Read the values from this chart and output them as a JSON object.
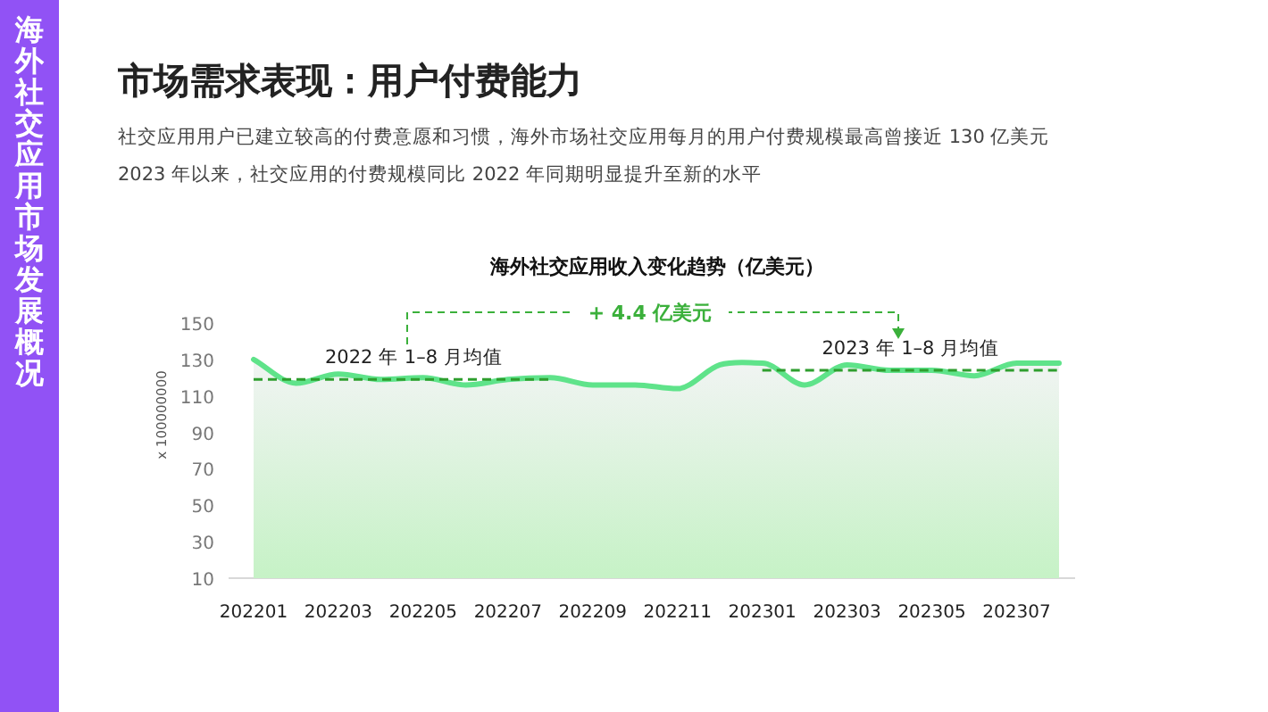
{
  "chart_data": {
    "type": "area",
    "title": "海外社交应用收入变化趋势（亿美元）",
    "ylabel": "x 100000000",
    "annotations": [
      "海外社交应用市场发展概况",
      "市场需求表现：用户付费能力",
      "社交应用用户已建立较高的付费意愿和习惯，海外市场社交应用每月的用户付费规模最高曾接近 130 亿美元",
      "2023 年以来，社交应用的付费规模同比 2022 年同期明显提升至新的水平",
      "+ 4.4 亿美元"
    ],
    "categories": [
      "202201",
      null,
      "202203",
      null,
      "202205",
      null,
      "202207",
      null,
      "202209",
      null,
      "202211",
      null,
      "202301",
      null,
      "202303",
      null,
      "202305",
      null,
      "202307",
      null
    ],
    "ylim": [
      10,
      150
    ],
    "yticks": [
      10,
      30,
      50,
      70,
      90,
      110,
      130,
      150
    ],
    "grid": false,
    "series": [
      {
        "color": "#5fe38a",
        "values": [
          130,
          117,
          122,
          119,
          120,
          116,
          119,
          120,
          116,
          116,
          114,
          127,
          128,
          116,
          127,
          124,
          124,
          121,
          128,
          128
        ]
      },
      {
        "type": "line",
        "line_style": "dashed",
        "name": "2022 年 1–8 月均值",
        "color": "#2e9e2e",
        "values": [
          119,
          119,
          119,
          119,
          119,
          119,
          119,
          119,
          null,
          null,
          null,
          null,
          null,
          null,
          null,
          null,
          null,
          null,
          null,
          null
        ]
      },
      {
        "type": "line",
        "line_style": "dashed",
        "name": "2023 年 1–8 月均值",
        "color": "#2e9e2e",
        "values": [
          null,
          null,
          null,
          null,
          null,
          null,
          null,
          null,
          null,
          null,
          null,
          null,
          124,
          124,
          124,
          124,
          124,
          124,
          124,
          124
        ]
      }
    ]
  }
}
